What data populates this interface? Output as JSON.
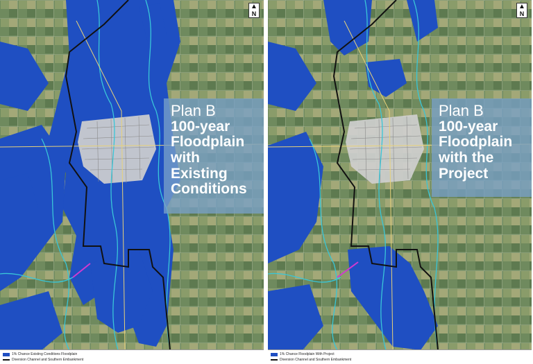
{
  "panels": [
    {
      "id": "existing",
      "title_line1": "Plan B",
      "title_line2": "100-year",
      "title_line3": "Floodplain",
      "title_line4": "with",
      "title_line5": "Existing",
      "title_line6": "Conditions",
      "legend_floodplain": "1% Chance Existing Conditions Floodplain",
      "legend_channel": "Diversion Channel and Southern Embankment"
    },
    {
      "id": "project",
      "title_line1": "Plan B",
      "title_line2": "100-year",
      "title_line3": "Floodplain",
      "title_line4": "with the",
      "title_line5": "Project",
      "legend_floodplain": "1% Chance Floodplain With Project",
      "legend_channel": "Diversion Channel and Southern Embankment"
    }
  ],
  "north_label": "N",
  "colors": {
    "flood": "#1f4fc2",
    "terrain": "#6f8a5e",
    "river": "#39c6d8",
    "channel": "#111111",
    "urban": "#cfcfcf",
    "title_box": "#78a0c8"
  }
}
